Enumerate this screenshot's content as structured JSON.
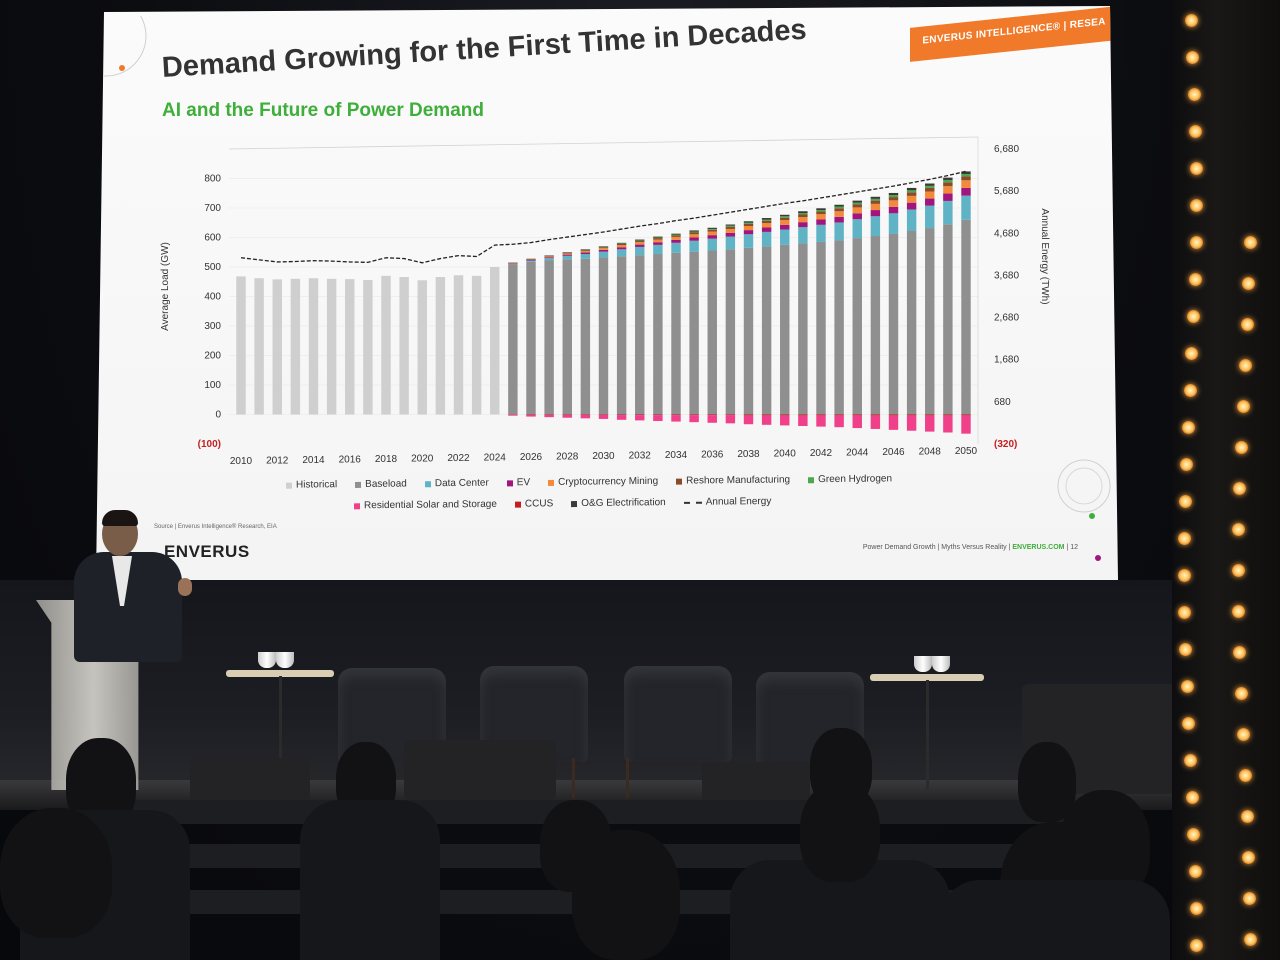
{
  "slide": {
    "brand_tag": "ENVERUS INTELLIGENCE® | RESEA",
    "title": "Demand Growing for the First Time in Decades",
    "subtitle": "AI and the Future of Power Demand",
    "source": "Source | Enverus Intelligence® Research, EIA",
    "logo": "ENVERUS",
    "footer": "Power Demand Growth | Myths Versus Reality | ",
    "footer_url": "ENVERUS.COM",
    "footer_page": " | 12"
  },
  "colors": {
    "historical": "#cfcfcf",
    "baseload": "#8f8f8f",
    "data_center": "#5fb3c4",
    "ev": "#a0157e",
    "crypto": "#f28a3c",
    "reshore": "#8b4a2a",
    "green_hydrogen": "#4aa84a",
    "residential": "#f0408a",
    "ccus": "#c41e1e",
    "og": "#3a3a3a",
    "annual_energy": "#222222",
    "title_green": "#3fae3b",
    "brand_orange": "#f07a2a"
  },
  "chart_data": {
    "type": "bar",
    "stacked": true,
    "x": [
      2010,
      2011,
      2012,
      2013,
      2014,
      2015,
      2016,
      2017,
      2018,
      2019,
      2020,
      2021,
      2022,
      2023,
      2024,
      2025,
      2026,
      2027,
      2028,
      2029,
      2030,
      2031,
      2032,
      2033,
      2034,
      2035,
      2036,
      2037,
      2038,
      2039,
      2040,
      2041,
      2042,
      2043,
      2044,
      2045,
      2046,
      2047,
      2048,
      2049,
      2050
    ],
    "x_tick_labels": [
      "2010",
      "2012",
      "2014",
      "2016",
      "2018",
      "2020",
      "2022",
      "2024",
      "2026",
      "2028",
      "2030",
      "2032",
      "2034",
      "2036",
      "2038",
      "2040",
      "2042",
      "2044",
      "2046",
      "2048",
      "2050"
    ],
    "ylabel": "Average Load (GW)",
    "y2label": "Annual Energy (TWh)",
    "ylim": [
      -100,
      900
    ],
    "y_ticks": [
      "(100)",
      "0",
      "100",
      "200",
      "300",
      "400",
      "500",
      "600",
      "700",
      "800"
    ],
    "y2lim": [
      -320,
      6680
    ],
    "y2_ticks": [
      "(320)",
      "680",
      "1,680",
      "2,680",
      "3,680",
      "4,680",
      "5,680",
      "6,680"
    ],
    "series": [
      {
        "name": "Historical",
        "values": [
          468,
          462,
          458,
          460,
          462,
          460,
          459,
          456,
          470,
          466,
          455,
          466,
          472,
          470,
          500,
          0,
          0,
          0,
          0,
          0,
          0,
          0,
          0,
          0,
          0,
          0,
          0,
          0,
          0,
          0,
          0,
          0,
          0,
          0,
          0,
          0,
          0,
          0,
          0,
          0,
          0
        ]
      },
      {
        "name": "Baseload",
        "values": [
          0,
          0,
          0,
          0,
          0,
          0,
          0,
          0,
          0,
          0,
          0,
          0,
          0,
          0,
          0,
          510,
          518,
          522,
          526,
          528,
          532,
          536,
          540,
          544,
          548,
          552,
          556,
          560,
          565,
          570,
          575,
          580,
          585,
          590,
          598,
          605,
          612,
          622,
          632,
          645,
          660
        ]
      },
      {
        "name": "Data Center",
        "values": [
          0,
          0,
          0,
          0,
          0,
          0,
          0,
          0,
          0,
          0,
          0,
          0,
          0,
          0,
          0,
          2,
          4,
          8,
          12,
          16,
          20,
          24,
          28,
          31,
          34,
          37,
          40,
          43,
          46,
          49,
          52,
          55,
          58,
          61,
          64,
          67,
          70,
          73,
          76,
          79,
          82
        ]
      },
      {
        "name": "EV",
        "values": [
          0,
          0,
          0,
          0,
          0,
          0,
          0,
          0,
          0,
          0,
          0,
          0,
          0,
          0,
          0,
          1,
          2,
          3,
          4,
          5,
          6,
          7,
          8,
          9,
          10,
          11,
          12,
          13,
          14,
          15,
          16,
          17,
          18,
          19,
          20,
          21,
          22,
          23,
          24,
          25,
          26
        ]
      },
      {
        "name": "Cryptocurrency Mining",
        "values": [
          0,
          0,
          0,
          0,
          0,
          0,
          0,
          0,
          0,
          0,
          0,
          0,
          0,
          0,
          0,
          1,
          2,
          3,
          4,
          5,
          6,
          7,
          8,
          9,
          10,
          11,
          12,
          13,
          14,
          15,
          16,
          17,
          18,
          19,
          20,
          21,
          22,
          23,
          24,
          25,
          26
        ]
      },
      {
        "name": "Reshore Manufacturing",
        "values": [
          0,
          0,
          0,
          0,
          0,
          0,
          0,
          0,
          0,
          0,
          0,
          0,
          0,
          0,
          0,
          1,
          1,
          2,
          2,
          3,
          3,
          4,
          4,
          5,
          5,
          6,
          6,
          7,
          7,
          8,
          8,
          9,
          9,
          10,
          10,
          11,
          11,
          12,
          12,
          13,
          13
        ]
      },
      {
        "name": "Green Hydrogen",
        "values": [
          0,
          0,
          0,
          0,
          0,
          0,
          0,
          0,
          0,
          0,
          0,
          0,
          0,
          0,
          0,
          0,
          0,
          0,
          1,
          1,
          1,
          2,
          2,
          2,
          3,
          3,
          3,
          4,
          4,
          4,
          5,
          5,
          5,
          6,
          6,
          6,
          7,
          7,
          7,
          8,
          8
        ]
      },
      {
        "name": "O&G Electrification",
        "values": [
          0,
          0,
          0,
          0,
          0,
          0,
          0,
          0,
          0,
          0,
          0,
          0,
          0,
          0,
          0,
          0,
          1,
          1,
          1,
          2,
          2,
          2,
          3,
          3,
          3,
          4,
          4,
          4,
          5,
          5,
          5,
          6,
          6,
          6,
          7,
          7,
          7,
          8,
          8,
          8,
          9
        ]
      },
      {
        "name": "CCUS",
        "values": [
          0,
          0,
          0,
          0,
          0,
          0,
          0,
          0,
          0,
          0,
          0,
          0,
          0,
          0,
          0,
          0,
          -1,
          -1,
          -1,
          -1,
          -1,
          -2,
          -2,
          -2,
          -2,
          -2,
          -2,
          -2,
          -3,
          -3,
          -3,
          -3,
          -3,
          -3,
          -3,
          -3,
          -3,
          -3,
          -3,
          -3,
          -3
        ]
      },
      {
        "name": "Residential Solar and Storage",
        "values": [
          0,
          0,
          0,
          0,
          0,
          0,
          0,
          0,
          0,
          0,
          0,
          0,
          0,
          0,
          0,
          -4,
          -6,
          -8,
          -10,
          -12,
          -14,
          -16,
          -18,
          -20,
          -22,
          -24,
          -26,
          -28,
          -30,
          -32,
          -34,
          -36,
          -38,
          -40,
          -43,
          -46,
          -49,
          -52,
          -55,
          -58,
          -62
        ]
      }
    ],
    "line": {
      "name": "Annual Energy",
      "values": [
        4100,
        4050,
        4000,
        4010,
        4030,
        4020,
        4000,
        3990,
        4100,
        4080,
        3980,
        4080,
        4150,
        4130,
        4400,
        4420,
        4460,
        4530,
        4590,
        4650,
        4710,
        4780,
        4850,
        4910,
        4980,
        5040,
        5110,
        5180,
        5250,
        5320,
        5390,
        5450,
        5520,
        5590,
        5660,
        5730,
        5800,
        5880,
        5960,
        6050,
        6150
      ]
    },
    "legend": [
      "Historical",
      "Baseload",
      "Data Center",
      "EV",
      "Cryptocurrency Mining",
      "Reshore Manufacturing",
      "Green Hydrogen",
      "Residential Solar and Storage",
      "CCUS",
      "O&G Electrification",
      "Annual Energy"
    ]
  }
}
